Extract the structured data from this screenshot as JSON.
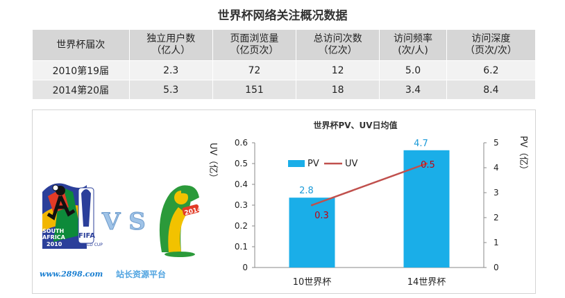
{
  "title": "世界杯网络关注概况数据",
  "table": {
    "headers": [
      [
        "世界杯届次"
      ],
      [
        "独立用户数",
        "（亿人）"
      ],
      [
        "页面浏览量",
        "（亿页次）"
      ],
      [
        "总访问次数",
        "（亿次）"
      ],
      [
        "访问频率",
        "(次/人)"
      ],
      [
        "访问深度",
        "（页次/次）"
      ]
    ],
    "rows": [
      [
        "2010第19届",
        "2.3",
        "72",
        "12",
        "5.0",
        "6.2"
      ],
      [
        "2014第20届",
        "5.3",
        "151",
        "18",
        "3.4",
        "8.4"
      ]
    ]
  },
  "logos": {
    "sa_line1": "SOUTH",
    "sa_line2": "AFRICA",
    "sa_year": "2010",
    "fifa": "FIFA",
    "world_cup": "WORLD CUP",
    "vs": "V S",
    "br_year": "2014",
    "site": "www.2898.com",
    "site_name": "站长资源平台"
  },
  "chart_data": {
    "type": "bar",
    "title": "世界杯PV、UV日均值",
    "categories": [
      "10世界杯",
      "14世界杯"
    ],
    "series": [
      {
        "name": "PV",
        "type": "bar",
        "axis": "right",
        "values": [
          2.8,
          4.7
        ],
        "color": "#1aaee8"
      },
      {
        "name": "UV",
        "type": "line",
        "axis": "left",
        "values": [
          0.3,
          0.5
        ],
        "color": "#c0504d"
      }
    ],
    "left_axis": {
      "label": "UV（亿）",
      "min": 0,
      "max": 0.6,
      "ticks": [
        "0",
        "0.1",
        "0.2",
        "0.3",
        "0.4",
        "0.5",
        "0.6"
      ]
    },
    "right_axis": {
      "label": "PV（亿）",
      "min": 0,
      "max": 5,
      "ticks": [
        "0",
        "1",
        "2",
        "3",
        "4",
        "5"
      ]
    },
    "legend_position": "top-left"
  }
}
